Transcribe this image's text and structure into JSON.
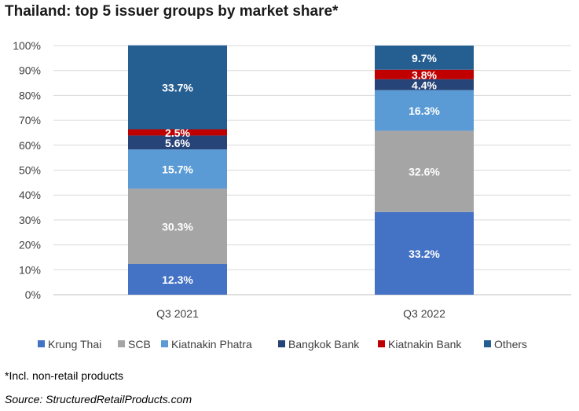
{
  "chart_data": {
    "type": "bar",
    "stacked": true,
    "title": "Thailand: top 5 issuer groups by market share*",
    "categories": [
      "Q3 2021",
      "Q3 2022"
    ],
    "ylim": [
      0,
      100
    ],
    "yticks": [
      "0%",
      "10%",
      "20%",
      "30%",
      "40%",
      "50%",
      "60%",
      "70%",
      "80%",
      "90%",
      "100%"
    ],
    "grid": true,
    "legend_position": "bottom",
    "series": [
      {
        "name": "Krung Thai",
        "color": "#4472c4",
        "values": [
          12.3,
          33.2
        ],
        "labels": [
          "12.3%",
          "33.2%"
        ]
      },
      {
        "name": "SCB",
        "color": "#a5a5a5",
        "values": [
          30.3,
          32.6
        ],
        "labels": [
          "30.3%",
          "32.6%"
        ]
      },
      {
        "name": "Kiatnakin Phatra",
        "color": "#5b9bd5",
        "values": [
          15.7,
          16.3
        ],
        "labels": [
          "15.7%",
          "16.3%"
        ]
      },
      {
        "name": "Bangkok Bank",
        "color": "#264478",
        "values": [
          5.6,
          4.4
        ],
        "labels": [
          "5.6%",
          "4.4%"
        ]
      },
      {
        "name": "Kiatnakin Bank",
        "color": "#c00000",
        "values": [
          2.5,
          3.8
        ],
        "labels": [
          "2.5%",
          "3.8%"
        ]
      },
      {
        "name": "Others",
        "color": "#255e91",
        "values": [
          33.7,
          9.7
        ],
        "labels": [
          "33.7%",
          "9.7%"
        ]
      }
    ]
  },
  "footnote": "*Incl. non-retail products",
  "source": "Source: StructuredRetailProducts.com"
}
